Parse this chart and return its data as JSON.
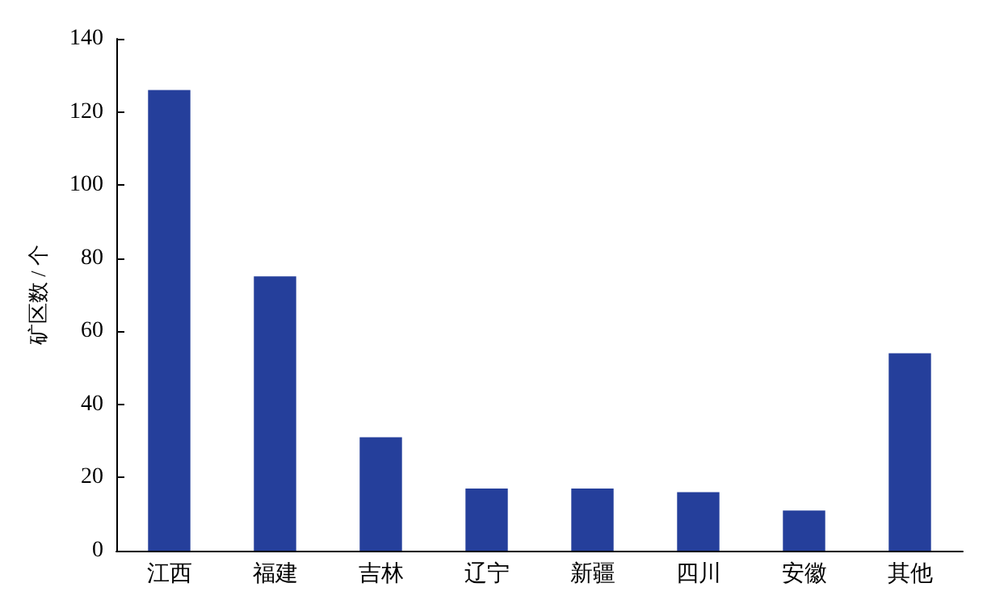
{
  "chart_data": {
    "type": "bar",
    "ylabel": "矿区数 / 个",
    "categories": [
      "江西",
      "福建",
      "吉林",
      "辽宁",
      "新疆",
      "四川",
      "安徽",
      "其他"
    ],
    "values": [
      126,
      75,
      31,
      17,
      17,
      16,
      11,
      54
    ],
    "color": "#253f9b",
    "ylim": [
      0,
      140
    ],
    "yticks": [
      0,
      20,
      40,
      60,
      80,
      100,
      120,
      140
    ],
    "grid": false
  }
}
